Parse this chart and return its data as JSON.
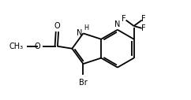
{
  "bg_color": "#ffffff",
  "bond_color": "#000000",
  "text_color": "#000000",
  "bond_width": 1.3,
  "font_size": 7.0,
  "fig_width": 2.42,
  "fig_height": 1.27,
  "dpi": 100,
  "xlim": [
    0,
    10
  ],
  "ylim": [
    0,
    5.25
  ]
}
